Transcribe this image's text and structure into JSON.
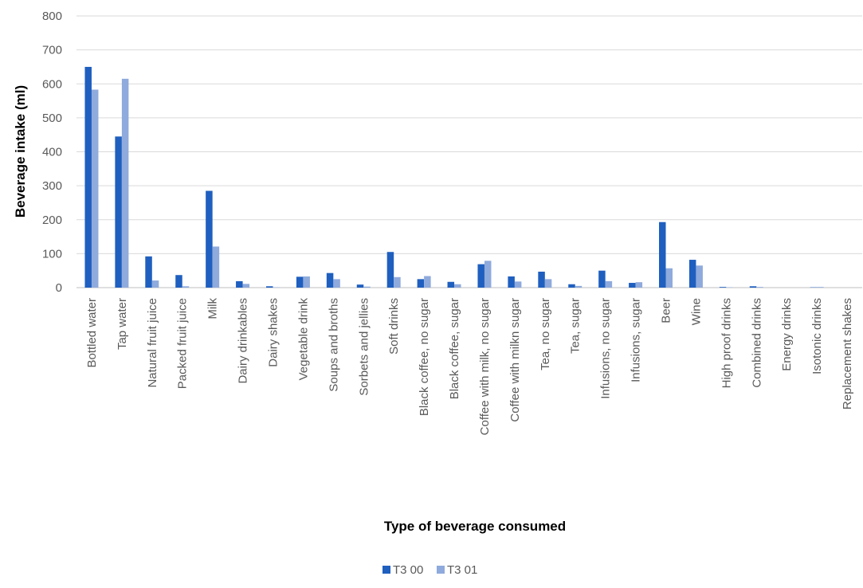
{
  "chart_data": {
    "type": "bar",
    "title": "",
    "xlabel": "Type of beverage consumed",
    "ylabel": "Beverage intake (ml)",
    "ylim": [
      0,
      800
    ],
    "yticks": [
      0,
      100,
      200,
      300,
      400,
      500,
      600,
      700,
      800
    ],
    "grid": "horizontal",
    "legend_position": "bottom",
    "categories": [
      "Bottled water",
      "Tap water",
      "Natural fruit juice",
      "Packed fruit juice",
      "Milk",
      "Dairy drinkables",
      "Dairy shakes",
      "Vegetable drink",
      "Soups and broths",
      "Sorbets and jellies",
      "Soft drinks",
      "Black coffee, no sugar",
      "Black coffee,  sugar",
      "Coffee with milk, no sugar",
      "Coffee with milkn sugar",
      "Tea, no sugar",
      "Tea, sugar",
      "Infusions, no sugar",
      "Infusions, sugar",
      "Beer",
      "Wine",
      "High proof drinks",
      "Combined drinks",
      "Energy drinks",
      "Isotonic drinks",
      "Replacement shakes"
    ],
    "series": [
      {
        "name": "T3 00",
        "color": "#1F5FBF",
        "values": [
          650,
          445,
          92,
          37,
          285,
          19,
          4,
          32,
          43,
          9,
          105,
          25,
          17,
          69,
          33,
          47,
          10,
          50,
          14,
          193,
          82,
          2,
          4,
          0,
          1,
          0
        ]
      },
      {
        "name": "T3 01",
        "color": "#8FAADC",
        "values": [
          583,
          615,
          21,
          4,
          121,
          11,
          1,
          33,
          25,
          3,
          31,
          34,
          10,
          79,
          18,
          25,
          5,
          19,
          16,
          57,
          65,
          1,
          2,
          0,
          2,
          0
        ]
      }
    ]
  }
}
